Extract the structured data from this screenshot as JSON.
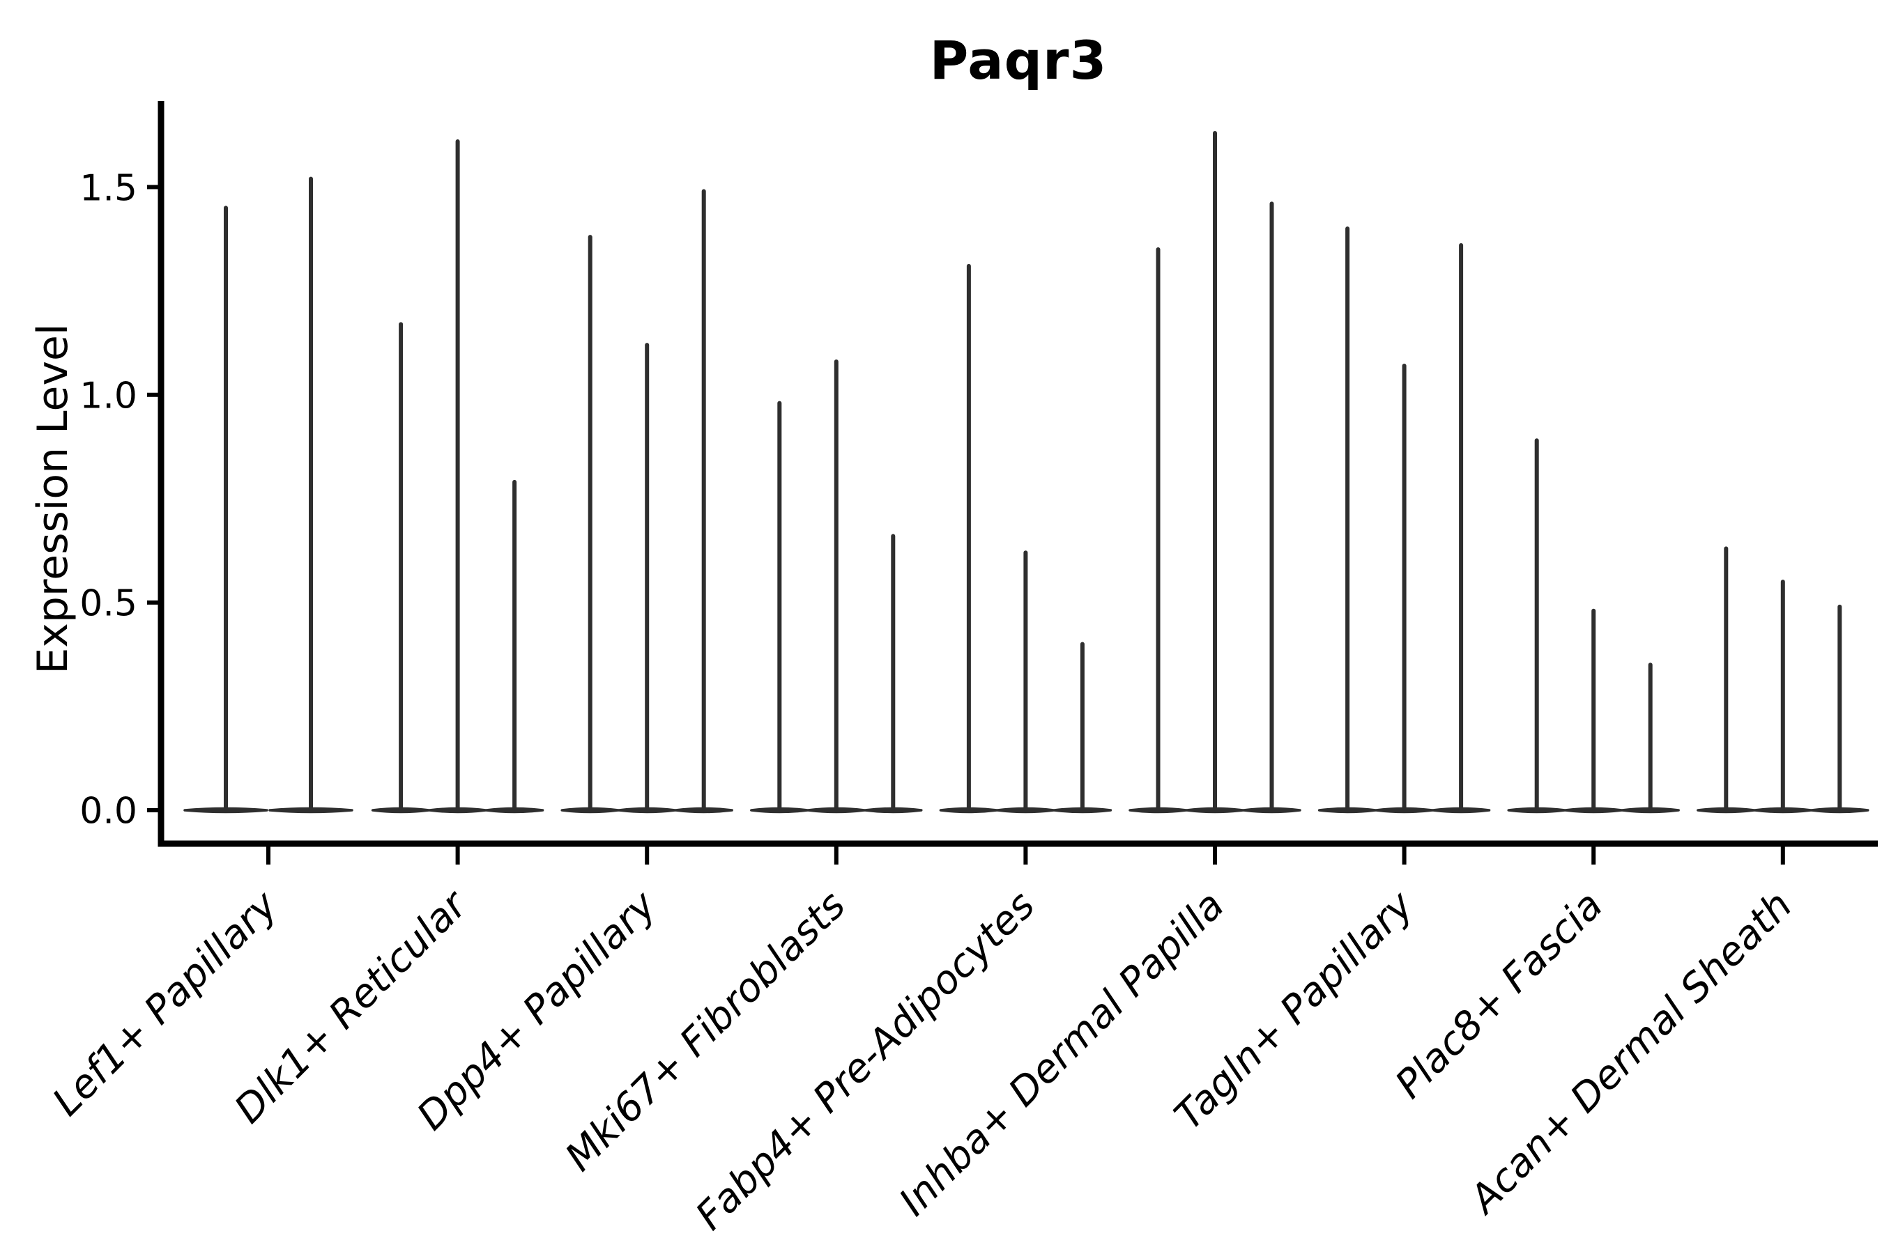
{
  "chart_data": {
    "type": "violin",
    "title": "Paqr3",
    "ylabel": "Expression Level",
    "xlabel": "",
    "ytick_labels": [
      "1.5",
      "1.0",
      "0.5",
      "0.0"
    ],
    "ytick_values": [
      1.5,
      1.0,
      0.5,
      0.0
    ],
    "ylim": [
      -0.07,
      1.72
    ],
    "grid": false,
    "legend": false,
    "groups": [
      {
        "label": "Lef1+ Papillary",
        "violin_maxima": [
          1.45,
          1.52
        ]
      },
      {
        "label": "Dlk1+ Reticular",
        "violin_maxima": [
          1.17,
          1.61,
          0.79
        ]
      },
      {
        "label": "Dpp4+ Papillary",
        "violin_maxima": [
          1.38,
          1.12,
          1.49
        ]
      },
      {
        "label": "Mki67+ Fibroblasts",
        "violin_maxima": [
          0.98,
          1.08,
          0.66
        ]
      },
      {
        "label": "Fabp4+ Pre-Adipocytes",
        "violin_maxima": [
          1.31,
          0.62,
          0.4
        ]
      },
      {
        "label": "Inhba+ Dermal Papilla",
        "violin_maxima": [
          1.35,
          1.63,
          1.46
        ]
      },
      {
        "label": "Tagln+ Papillary",
        "violin_maxima": [
          1.4,
          1.07,
          1.36
        ]
      },
      {
        "label": "Plac8+ Fascia",
        "violin_maxima": [
          0.89,
          0.48,
          0.35
        ]
      },
      {
        "label": "Acan+ Dermal Sheath",
        "violin_maxima": [
          0.63,
          0.55,
          0.49
        ]
      }
    ],
    "ink_color": "#2e2e2e",
    "axis_color": "#000000",
    "background_color": "#ffffff"
  }
}
